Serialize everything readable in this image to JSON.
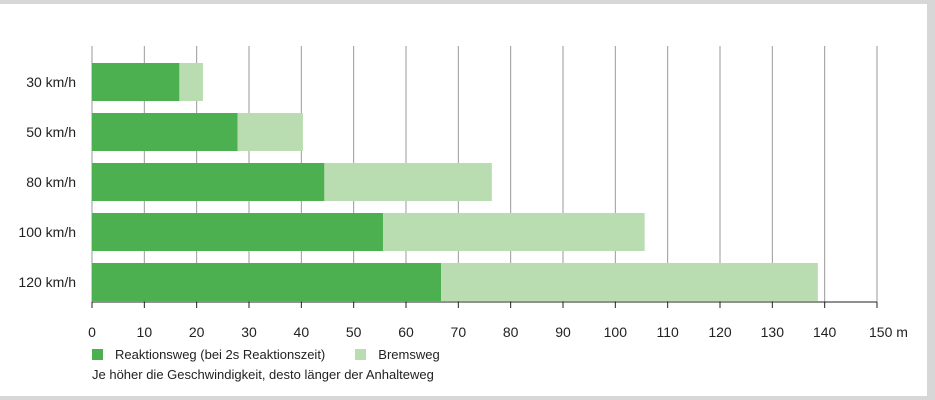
{
  "chart_data": {
    "type": "bar",
    "orientation": "horizontal",
    "stacked": true,
    "categories": [
      "30 km/h",
      "50 km/h",
      "80 km/h",
      "100 km/h",
      "120 km/h"
    ],
    "series": [
      {
        "name": "Reaktionsweg (bei 2s Reaktionszeit)",
        "values": [
          16.7,
          27.8,
          44.4,
          55.6,
          66.7
        ],
        "color": "#4caf50"
      },
      {
        "name": "Bremsweg",
        "values": [
          4.5,
          12.5,
          32.0,
          50.0,
          72.0
        ],
        "color": "#b9dcb0"
      }
    ],
    "xlim": [
      0,
      150
    ],
    "xticks": [
      "0",
      "10",
      "20",
      "30",
      "40",
      "50",
      "60",
      "70",
      "80",
      "90",
      "100",
      "110",
      "120",
      "130",
      "140",
      "150 m"
    ],
    "grid": true
  },
  "note": "Je höher die Geschwindigkeit, desto länger der Anhalteweg"
}
